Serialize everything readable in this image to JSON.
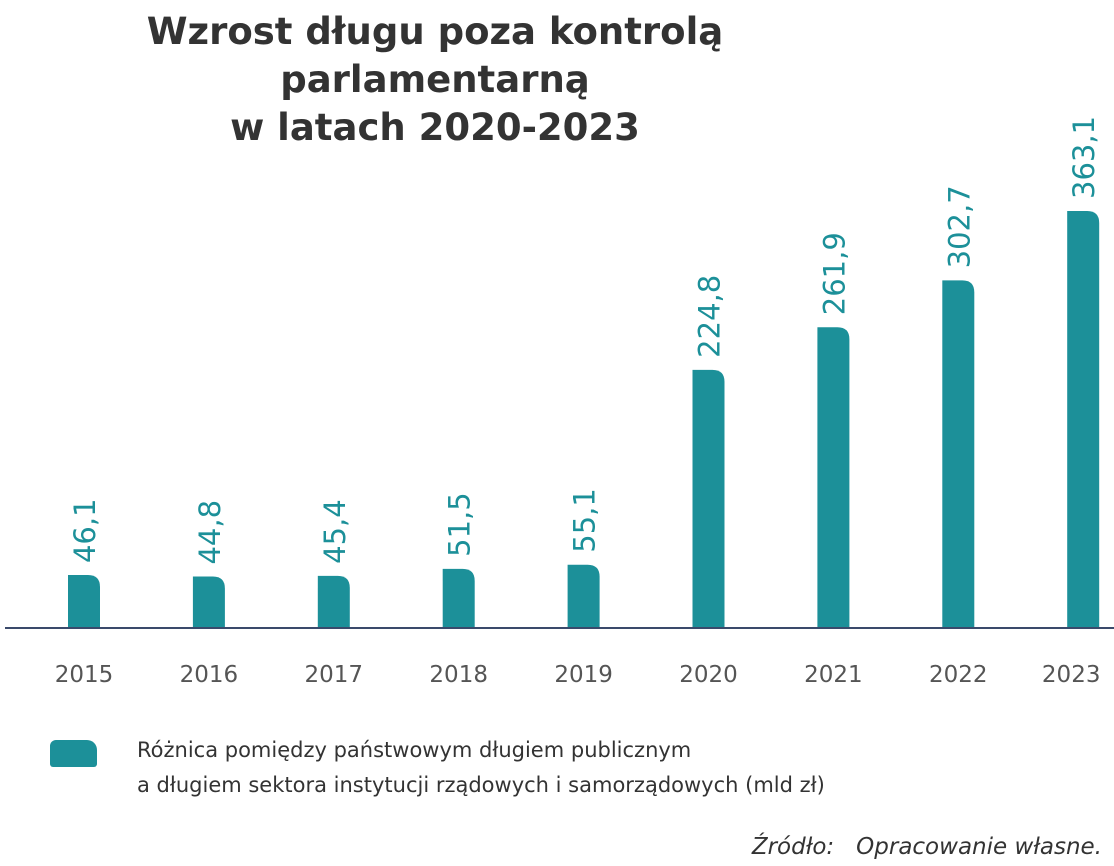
{
  "chart_data": {
    "type": "bar",
    "title": "Wzrost długu poza kontrolą parlamentarną\nw latach 2020-2023",
    "categories": [
      "2015",
      "2016",
      "2017",
      "2018",
      "2019",
      "2020",
      "2021",
      "2022",
      "2023"
    ],
    "series": [
      {
        "name": "Różnica pomiędzy państwowym długiem publicznym\na długiem sektora instytucji rządowych i samorządowych (mld zł)",
        "color": "#1c9099",
        "values": [
          46.1,
          44.8,
          45.4,
          51.5,
          55.1,
          224.8,
          261.9,
          302.7,
          363.1
        ],
        "value_labels": [
          "46,1",
          "44,8",
          "45,4",
          "51,5",
          "55,1",
          "224,8",
          "261,9",
          "302,7",
          "363,1"
        ]
      }
    ],
    "source": {
      "label": "Źródło:",
      "text": "Opracowanie własne."
    }
  }
}
